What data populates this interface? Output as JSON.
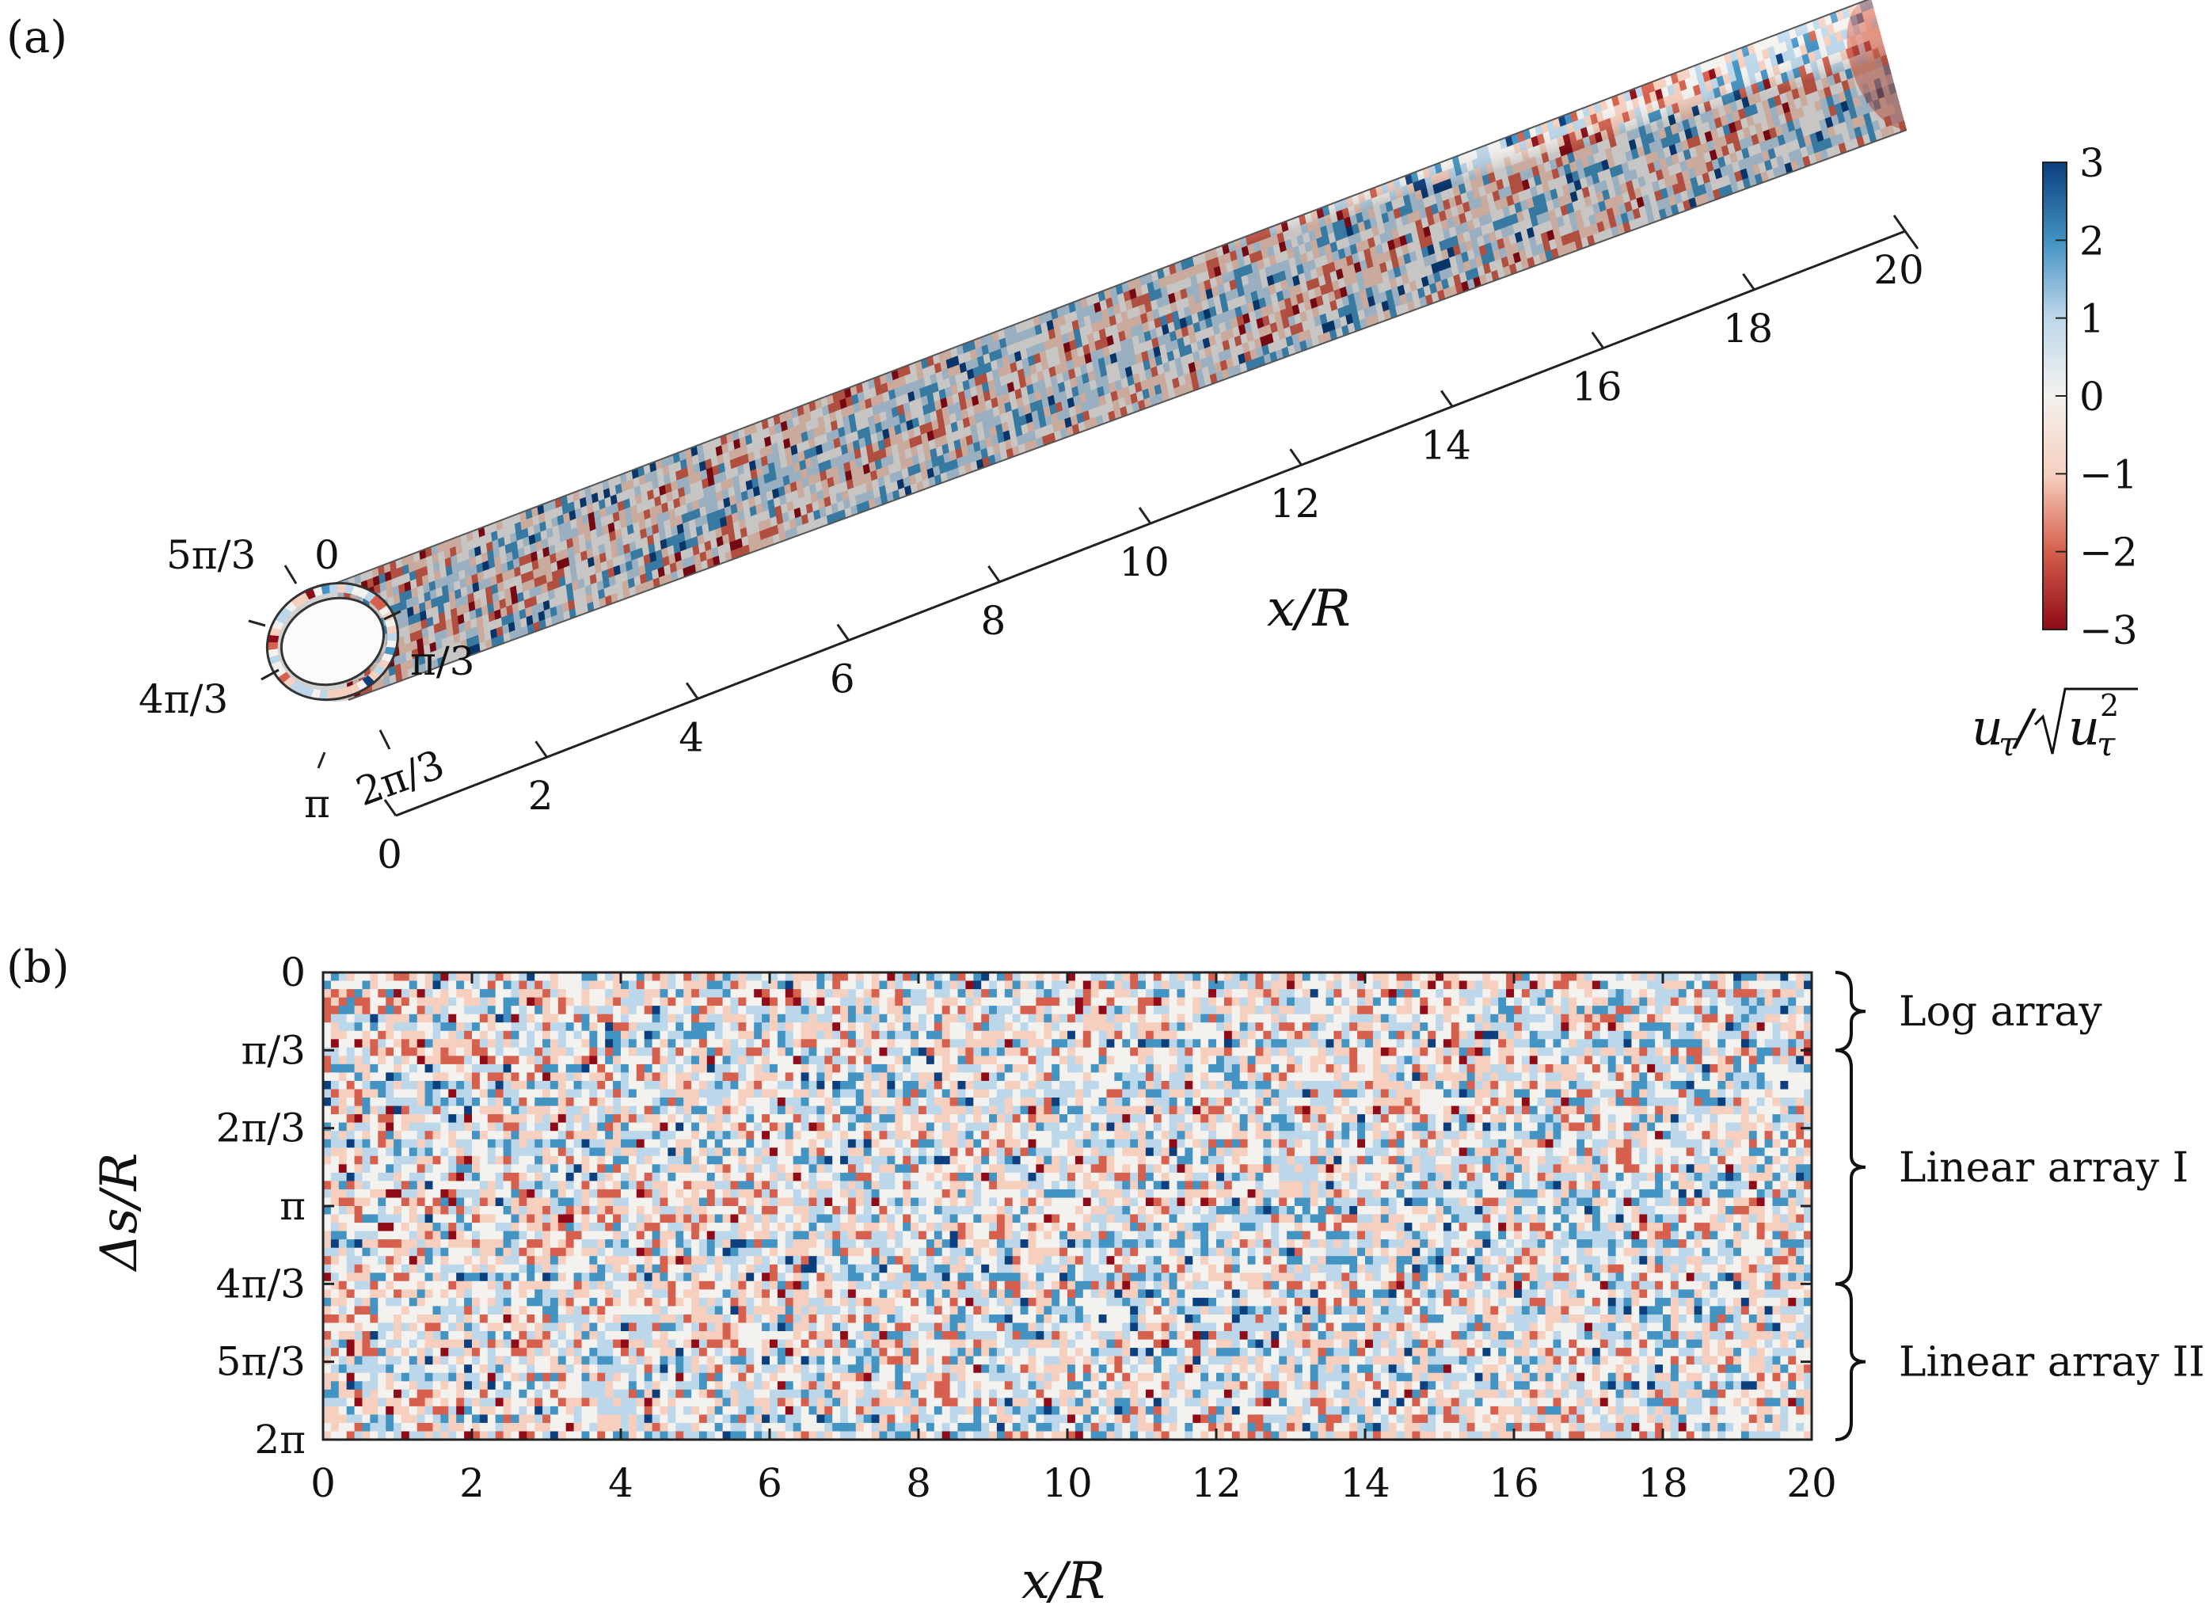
{
  "figure": {
    "panel_a_label": "(a)",
    "panel_b_label": "(b)"
  },
  "colors": {
    "negative_strong": "#8e0b17",
    "negative": "#d6604d",
    "negative_light": "#f6cfbe",
    "neutral": "#f4f2ef",
    "positive_light": "#bcd7ea",
    "positive": "#4393c3",
    "positive_strong": "#0b3f7d"
  },
  "colorbar": {
    "ticks": [
      "3",
      "2",
      "1",
      "0",
      "−1",
      "−2",
      "−3"
    ],
    "values": [
      3,
      2,
      1,
      0,
      -1,
      -2,
      -3
    ],
    "range": [
      -3,
      3
    ],
    "label": "u_τ/√(u_τ²)"
  },
  "chart_data": [
    {
      "type": "surface-3d",
      "panel": "(a)",
      "x_axis": {
        "label": "x/R",
        "range": [
          0,
          20
        ],
        "ticks": [
          0,
          2,
          4,
          6,
          8,
          10,
          12,
          14,
          16,
          18,
          20
        ],
        "tick_labels": [
          "0",
          "2",
          "4",
          "6",
          "8",
          "10",
          "12",
          "14",
          "16",
          "18",
          "20"
        ]
      },
      "azimuth_ticks": [
        "0",
        "π/3",
        "2π/3",
        "π",
        "4π/3",
        "5π/3"
      ],
      "colorbar_range": [
        -3,
        3
      ]
    },
    {
      "type": "heatmap",
      "panel": "(b)",
      "x_axis": {
        "label": "x/R",
        "range": [
          0,
          20
        ],
        "ticks": [
          0,
          2,
          4,
          6,
          8,
          10,
          12,
          14,
          16,
          18,
          20
        ],
        "tick_labels": [
          "0",
          "2",
          "4",
          "6",
          "8",
          "10",
          "12",
          "14",
          "16",
          "18",
          "20"
        ]
      },
      "y_axis": {
        "label": "Δs/R",
        "range": [
          "0",
          "2π"
        ],
        "tick_labels": [
          "0",
          "π/3",
          "2π/3",
          "π",
          "4π/3",
          "5π/3",
          "2π"
        ]
      },
      "groups": [
        {
          "label": "Log array",
          "from": "0",
          "to": "π/3"
        },
        {
          "label": "Linear array I",
          "from": "π/3",
          "to": "4π/3"
        },
        {
          "label": "Linear array II",
          "from": "4π/3",
          "to": "2π"
        }
      ],
      "colorbar_range": [
        -3,
        3
      ]
    }
  ]
}
